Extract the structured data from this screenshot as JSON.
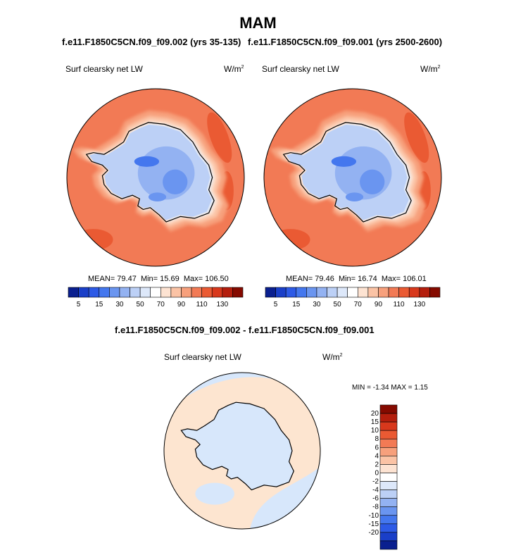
{
  "page": {
    "season": "MAM",
    "left_title": "f.e11.F1850C5CN.f09_f09.002 (yrs 35-135)",
    "right_title": "f.e11.F1850C5CN.f09_f09.001 (yrs 2500-2600)",
    "diff_title": "f.e11.F1850C5CN.f09_f09.002 - f.e11.F1850C5CN.f09_f09.001"
  },
  "colors": {
    "blues": [
      "#0a1f8f",
      "#1a3fc8",
      "#2d5ae6",
      "#4477ee",
      "#6a95f0",
      "#93b2f2",
      "#bcd0f6",
      "#dde8fa"
    ],
    "reds": [
      "#fde3d2",
      "#fbc3a5",
      "#f7a07c",
      "#f27a55",
      "#ea5a33",
      "#d8381c",
      "#b41e0d",
      "#850a00"
    ],
    "neutral": "#ffffff",
    "diff_pos": "#fde5d0",
    "diff_neg": "#d7e7fb",
    "coast": "#000000"
  },
  "chart_data": [
    {
      "type": "heatmap",
      "projection": "south-polar-stereographic",
      "title": "Surf clearsky net LW",
      "units_base": "W/m",
      "units_exp": "2",
      "stats": {
        "mean_label": "MEAN=",
        "mean": "79.47",
        "min_label": "Min=",
        "min": "15.69",
        "max_label": "Max=",
        "max": "106.50"
      },
      "levels": [
        5,
        10,
        15,
        20,
        30,
        40,
        50,
        60,
        70,
        80,
        90,
        100,
        110,
        120,
        130
      ],
      "tick_labels": [
        "5",
        "15",
        "30",
        "50",
        "70",
        "90",
        "110",
        "130"
      ]
    },
    {
      "type": "heatmap",
      "projection": "south-polar-stereographic",
      "title": "Surf clearsky net LW",
      "units_base": "W/m",
      "units_exp": "2",
      "stats": {
        "mean_label": "MEAN=",
        "mean": "79.46",
        "min_label": "Min=",
        "min": "16.74",
        "max_label": "Max=",
        "max": "106.01"
      },
      "levels": [
        5,
        10,
        15,
        20,
        30,
        40,
        50,
        60,
        70,
        80,
        90,
        100,
        110,
        120,
        130
      ],
      "tick_labels": [
        "5",
        "15",
        "30",
        "50",
        "70",
        "90",
        "110",
        "130"
      ]
    },
    {
      "type": "heatmap",
      "projection": "south-polar-stereographic",
      "title": "Surf clearsky net LW",
      "units_base": "W/m",
      "units_exp": "2",
      "stats": {
        "min_label": "MIN =",
        "min": "-1.34",
        "max_label": "MAX =",
        "max": "1.15"
      },
      "levels": [
        "20",
        "15",
        "10",
        "8",
        "6",
        "4",
        "2",
        "0",
        "-2",
        "-4",
        "-6",
        "-8",
        "-10",
        "-15",
        "-20"
      ]
    }
  ]
}
